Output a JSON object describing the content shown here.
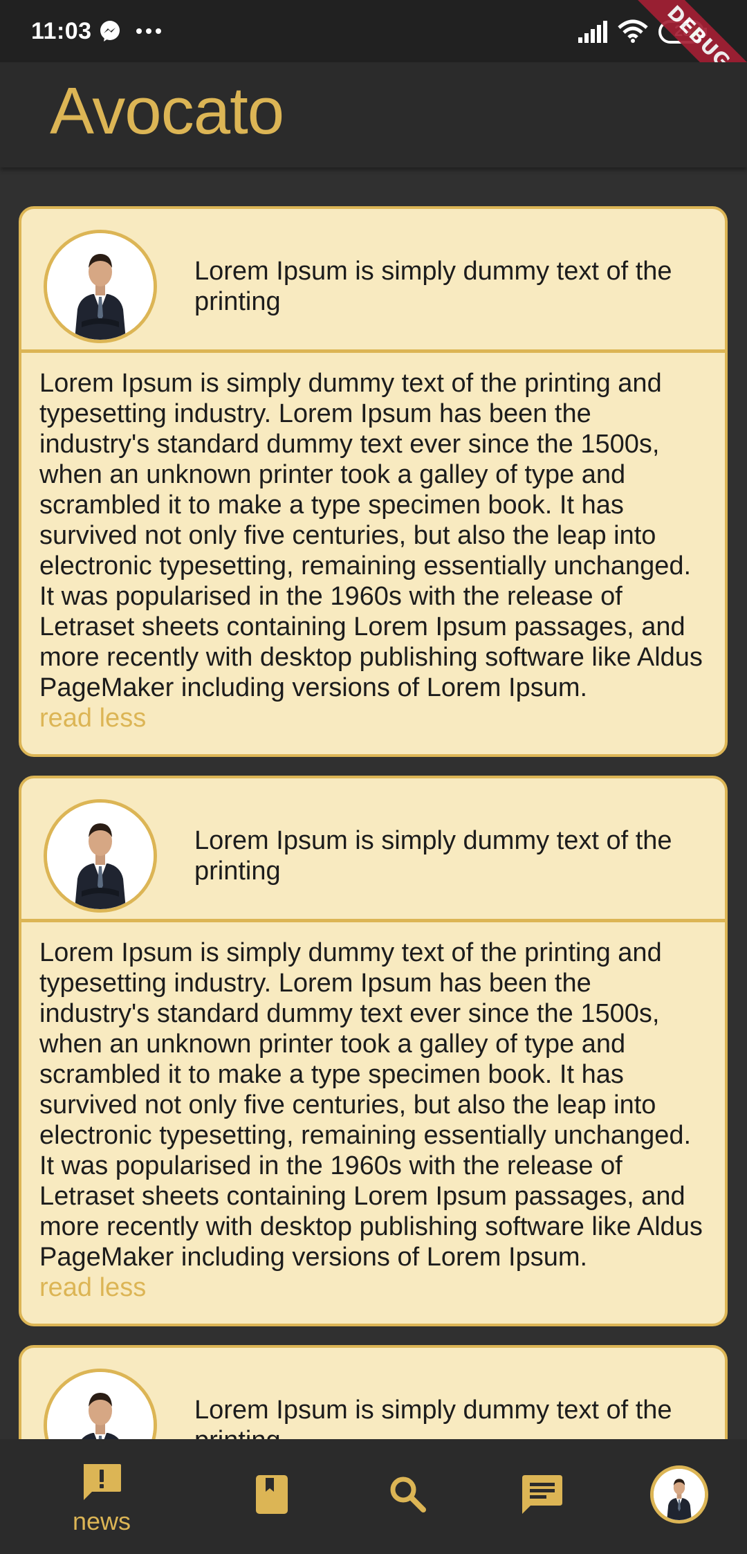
{
  "status_bar": {
    "time": "11:03",
    "battery": "28"
  },
  "debug_banner": "DEBUG",
  "app": {
    "title": "Avocato"
  },
  "posts": [
    {
      "title": "Lorem Ipsum is simply dummy text of the printing",
      "body": "Lorem Ipsum is simply dummy text of the printing and typesetting industry. Lorem Ipsum has been the industry's standard dummy text ever since the 1500s, when an unknown printer took a galley of type and scrambled it to make a type specimen book. It has survived not only five centuries, but also the leap into electronic typesetting, remaining essentially unchanged. It was popularised in the 1960s with the release of Letraset sheets containing Lorem Ipsum passages, and more recently with desktop publishing software like Aldus PageMaker including versions of Lorem Ipsum.",
      "toggle": "read less"
    },
    {
      "title": "Lorem Ipsum is simply dummy text of the printing",
      "body": "Lorem Ipsum is simply dummy text of the printing and typesetting industry. Lorem Ipsum has been the industry's standard dummy text ever since the 1500s, when an unknown printer took a galley of type and scrambled it to make a type specimen book. It has survived not only five centuries, but also the leap into electronic typesetting, remaining essentially unchanged. It was popularised in the 1960s with the release of Letraset sheets containing Lorem Ipsum passages, and more recently with desktop publishing software like Aldus PageMaker including versions of Lorem Ipsum.",
      "toggle": "read less"
    },
    {
      "title": "Lorem Ipsum is simply dummy text of the printing"
    }
  ],
  "bottom_nav": {
    "items": [
      {
        "label": "news",
        "icon": "alert-message-icon",
        "active": true
      },
      {
        "icon": "bookmark-icon"
      },
      {
        "icon": "search-icon"
      },
      {
        "icon": "chat-icon"
      },
      {
        "icon": "profile-avatar"
      }
    ]
  },
  "colors": {
    "accent": "#dcb555",
    "card_background": "#f8eac0",
    "page_background": "#303030",
    "bar_background": "#2b2b2b",
    "status_background": "#212121",
    "text": "#1c1c1c"
  }
}
